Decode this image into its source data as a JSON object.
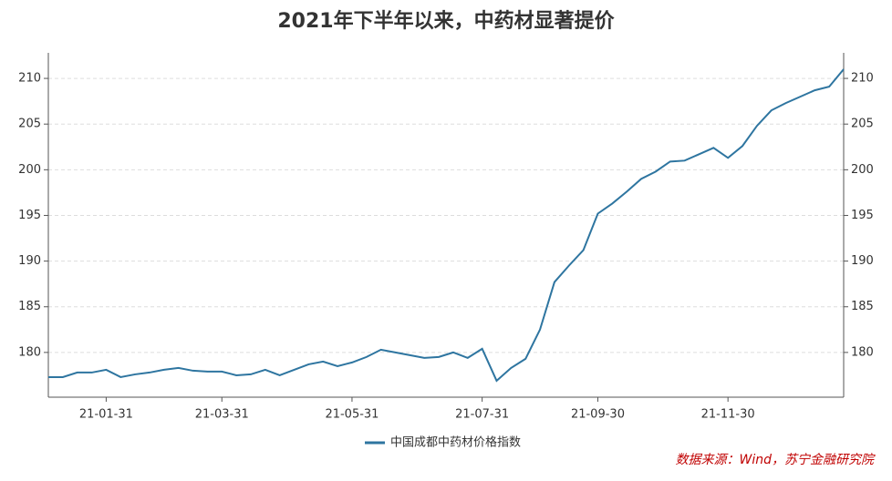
{
  "chart_data": {
    "type": "line",
    "title": "2021年下半年以来，中药材显著提价",
    "categories": [
      null,
      null,
      null,
      null,
      "21-01-31",
      null,
      null,
      null,
      null,
      null,
      null,
      null,
      "21-03-31",
      null,
      null,
      null,
      null,
      null,
      null,
      null,
      null,
      "21-05-31",
      null,
      null,
      null,
      null,
      null,
      null,
      null,
      null,
      "21-07-31",
      null,
      null,
      null,
      null,
      null,
      null,
      null,
      "21-09-30",
      null,
      null,
      null,
      null,
      null,
      null,
      null,
      null,
      "21-11-30",
      null,
      null,
      null,
      null,
      null,
      null,
      null,
      null
    ],
    "series": [
      {
        "name": "中国成都中药材价格指数",
        "color": "#2e75a0",
        "values": [
          177.3,
          177.3,
          177.8,
          177.8,
          178.1,
          177.3,
          177.6,
          177.8,
          178.1,
          178.3,
          178.0,
          177.9,
          177.9,
          177.5,
          177.6,
          178.1,
          177.5,
          178.1,
          178.7,
          179.0,
          178.5,
          178.9,
          179.5,
          180.3,
          180.0,
          179.7,
          179.4,
          179.5,
          180.0,
          179.4,
          180.4,
          176.9,
          178.3,
          179.3,
          182.5,
          187.7,
          189.5,
          191.2,
          195.2,
          196.3,
          197.6,
          199.0,
          199.8,
          200.9,
          201.0,
          201.7,
          202.4,
          201.3,
          202.6,
          204.8,
          206.5,
          207.3,
          208.0,
          208.7,
          209.1,
          211.0
        ]
      }
    ],
    "ylim": [
      175.1,
      212.8
    ],
    "yticks": [
      180,
      185,
      190,
      195,
      200,
      205,
      210
    ],
    "y2lim": [
      175.1,
      212.8
    ],
    "y2ticks": [
      180,
      185,
      190,
      195,
      200,
      205,
      210
    ],
    "grid": true,
    "legend": "bottom",
    "source": "数据来源：Wind，苏宁金融研究院"
  }
}
